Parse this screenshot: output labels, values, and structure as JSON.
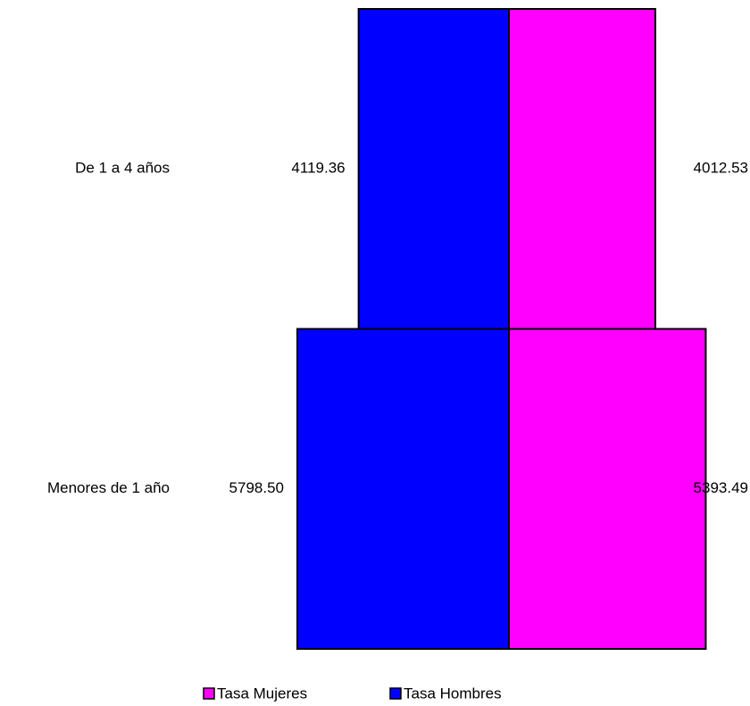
{
  "chart_data": {
    "type": "pyramid",
    "categories": [
      "De 1 a 4 años",
      "Menores de 1 año"
    ],
    "series": [
      {
        "name": "Tasa Hombres",
        "color": "#0000ff",
        "side": "left",
        "values": [
          4119.36,
          5798.5
        ],
        "value_labels": [
          "4119.36",
          "5798.50"
        ]
      },
      {
        "name": "Tasa Mujeres",
        "color": "#ff00ff",
        "side": "right",
        "values": [
          4012.53,
          5393.49
        ],
        "value_labels": [
          "4012.53",
          "5393.49"
        ]
      }
    ],
    "legend_order": [
      1,
      0
    ]
  }
}
